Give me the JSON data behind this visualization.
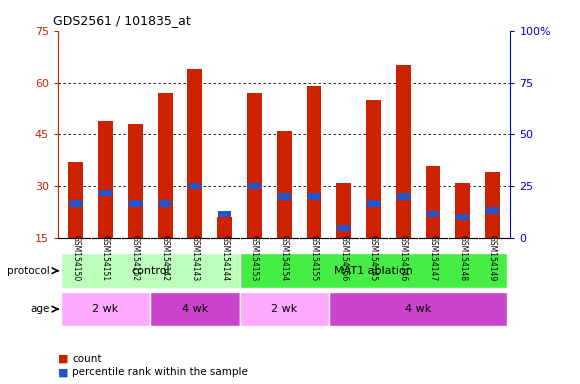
{
  "title": "GDS2561 / 101835_at",
  "samples": [
    "GSM154150",
    "GSM154151",
    "GSM154152",
    "GSM154142",
    "GSM154143",
    "GSM154144",
    "GSM154153",
    "GSM154154",
    "GSM154155",
    "GSM154156",
    "GSM154145",
    "GSM154146",
    "GSM154147",
    "GSM154148",
    "GSM154149"
  ],
  "bar_values": [
    37,
    49,
    48,
    57,
    64,
    21,
    57,
    46,
    59,
    31,
    55,
    65,
    36,
    31,
    34
  ],
  "blue_values": [
    25,
    28,
    25,
    25,
    30,
    22,
    30,
    27,
    27,
    18,
    25,
    27,
    22,
    21,
    23
  ],
  "ylim_left": [
    15,
    75
  ],
  "ylim_right": [
    0,
    100
  ],
  "yticks_left": [
    15,
    30,
    45,
    60,
    75
  ],
  "yticks_right": [
    0,
    25,
    50,
    75,
    100
  ],
  "bar_color": "#cc2200",
  "blue_color": "#2255cc",
  "bar_width": 0.5,
  "protocol_groups": [
    {
      "label": "control",
      "start": 0,
      "end": 6,
      "color": "#bbffbb"
    },
    {
      "label": "MAT1 ablation",
      "start": 6,
      "end": 15,
      "color": "#44ee44"
    }
  ],
  "age_groups": [
    {
      "label": "2 wk",
      "start": 0,
      "end": 3,
      "color": "#ffaaff"
    },
    {
      "label": "4 wk",
      "start": 3,
      "end": 6,
      "color": "#cc44cc"
    },
    {
      "label": "2 wk",
      "start": 6,
      "end": 9,
      "color": "#ffaaff"
    },
    {
      "label": "4 wk",
      "start": 9,
      "end": 15,
      "color": "#cc44cc"
    }
  ],
  "legend_items": [
    {
      "label": "count",
      "color": "#cc2200"
    },
    {
      "label": "percentile rank within the sample",
      "color": "#2255cc"
    }
  ],
  "left_tick_color": "#cc2200",
  "right_tick_color": "#0000cc",
  "title_color": "#000000"
}
